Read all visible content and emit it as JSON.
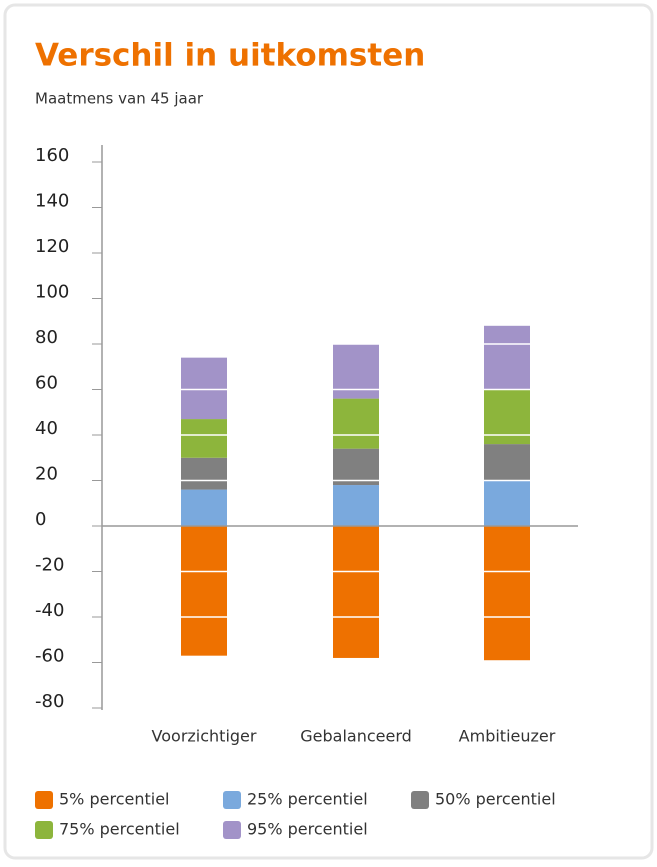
{
  "chart_data": {
    "type": "stacked_bar",
    "title": "Verschil in uitkomsten",
    "subtitle": "Maatmens van 45 jaar",
    "categories": [
      "Voorzichtiger",
      "Gebalanceerd",
      "Ambitieuzer"
    ],
    "series": [
      {
        "name": "5% percentiel",
        "color": "#ee7100",
        "values": [
          -57,
          -58,
          -59
        ]
      },
      {
        "name": "25% percentiel",
        "color": "#7aa9dd",
        "values": [
          16,
          18,
          20
        ]
      },
      {
        "name": "50% percentiel",
        "color": "#808080",
        "values": [
          14,
          16,
          16
        ]
      },
      {
        "name": "75% percentiel",
        "color": "#8db53c",
        "values": [
          17,
          22,
          24
        ]
      },
      {
        "name": "95% percentiel",
        "color": "#a293c8",
        "values": [
          27,
          24,
          28
        ]
      }
    ],
    "ylim": [
      -80,
      160
    ],
    "yticks": [
      -80,
      -60,
      -40,
      -20,
      0,
      20,
      40,
      60,
      80,
      100,
      120,
      140,
      160
    ],
    "grid": true
  }
}
